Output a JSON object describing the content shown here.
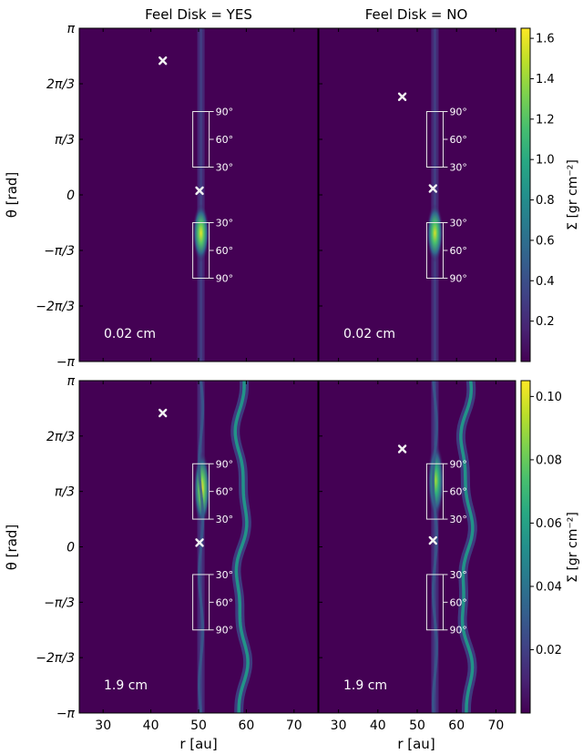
{
  "chart_data": {
    "type": "heatmap",
    "colormap": "viridis",
    "column_titles": [
      "Feel Disk = YES",
      "Feel Disk = NO"
    ],
    "xlabel": "r [au]",
    "ylabel": "θ [rad]",
    "x_ticks": [
      "30",
      "40",
      "50",
      "60",
      "70"
    ],
    "x_tick_values": [
      30,
      40,
      50,
      60,
      70
    ],
    "xlim": [
      25,
      75
    ],
    "y_ticks": [
      "π",
      "2π/3",
      "π/3",
      "0",
      "−π/3",
      "−2π/3",
      "−π"
    ],
    "ylim": [
      -3.1416,
      3.1416
    ],
    "grid": false,
    "box_labels": {
      "upper": [
        "90°",
        "60°",
        "30°"
      ],
      "lower": [
        "30°",
        "60°",
        "90°"
      ]
    },
    "rows": [
      {
        "size_label": "0.02 cm",
        "colorbar": {
          "label": "Σ [gr cm⁻²]",
          "range": [
            0.0,
            1.65
          ],
          "ticks": [
            "1.6",
            "1.4",
            "1.2",
            "1.0",
            "0.8",
            "0.6",
            "0.4",
            "0.2"
          ],
          "tick_values": [
            1.6,
            1.4,
            1.2,
            1.0,
            0.8,
            0.6,
            0.4,
            0.2
          ]
        },
        "panels": [
          {
            "feel_disk": "YES",
            "markers": [
              {
                "r": 42.5,
                "theta": 2.53
              },
              {
                "r": 50.2,
                "theta": 0.08
              }
            ],
            "ring_r": 50.5,
            "peak_theta": -0.72,
            "peak_sigma": 1.6
          },
          {
            "feel_disk": "NO",
            "markers": [
              {
                "r": 46.2,
                "theta": 1.85
              },
              {
                "r": 54.0,
                "theta": 0.12
              }
            ],
            "ring_r": 54.5,
            "peak_theta": -0.72,
            "peak_sigma": 1.55
          }
        ]
      },
      {
        "size_label": "1.9 cm",
        "colorbar": {
          "label": "Σ [gr cm⁻²]",
          "range": [
            0.0,
            0.105
          ],
          "ticks": [
            "0.10",
            "0.08",
            "0.06",
            "0.04",
            "0.02"
          ],
          "tick_values": [
            0.1,
            0.08,
            0.06,
            0.04,
            0.02
          ]
        },
        "panels": [
          {
            "feel_disk": "YES",
            "markers": [
              {
                "r": 42.5,
                "theta": 2.53
              },
              {
                "r": 50.2,
                "theta": 0.08
              }
            ],
            "ring_r": 50.5,
            "outer_ring_r": 59.0,
            "peak_theta": 1.1,
            "peak_sigma": 0.105
          },
          {
            "feel_disk": "NO",
            "markers": [
              {
                "r": 46.2,
                "theta": 1.85
              },
              {
                "r": 54.0,
                "theta": 0.12
              }
            ],
            "ring_r": 54.5,
            "outer_ring_r": 62.5,
            "peak_theta": 1.25,
            "peak_sigma": 0.09
          }
        ]
      }
    ]
  }
}
